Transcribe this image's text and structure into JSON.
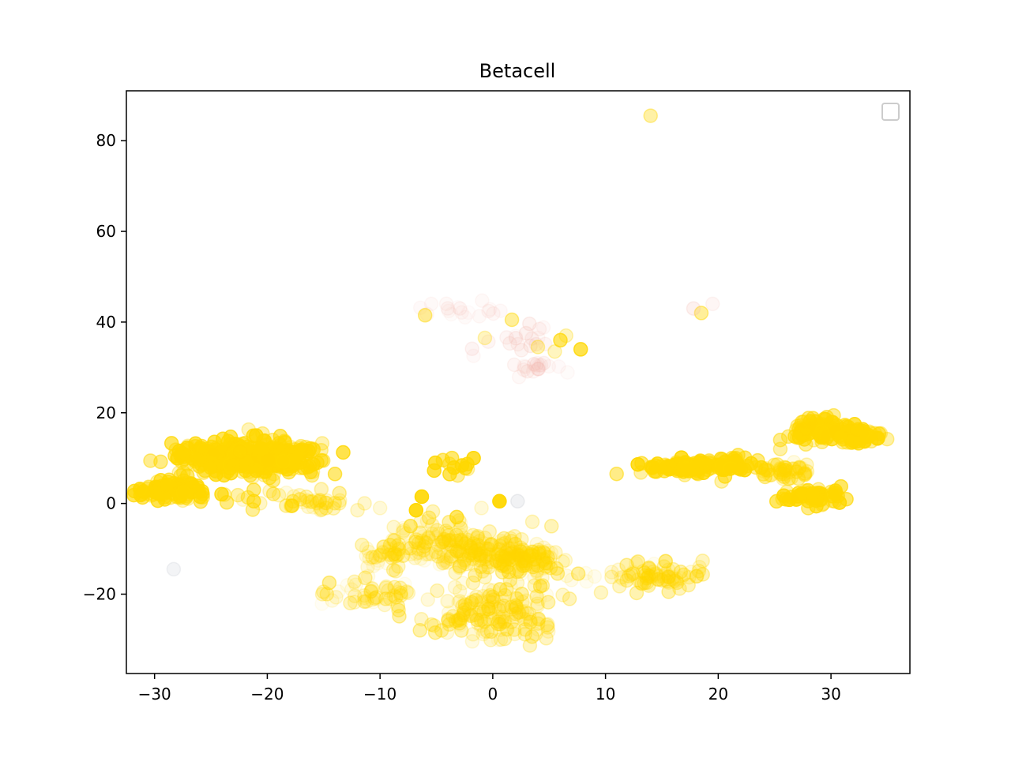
{
  "chart_data": {
    "type": "scatter",
    "title": "Betacell",
    "xlabel": "",
    "ylabel": "",
    "xlim": [
      -32.5,
      37
    ],
    "ylim": [
      -37.5,
      91
    ],
    "x_ticks": [
      -30,
      -20,
      -10,
      0,
      10,
      20,
      30
    ],
    "y_ticks": [
      -20,
      0,
      20,
      40,
      60,
      80
    ],
    "x_tick_labels": [
      "−30",
      "−20",
      "−10",
      "0",
      "10",
      "20",
      "30"
    ],
    "y_tick_labels": [
      "−20",
      "0",
      "20",
      "40",
      "60",
      "80"
    ],
    "grid": false,
    "legend": {
      "placement": "top-right",
      "entries": []
    },
    "marker_color": "#FFD700",
    "colors": {
      "gold": "#FFD700",
      "pink": "#F4B8B0",
      "grey": "#B0B8C0"
    },
    "clusters": [
      {
        "cx": -28.5,
        "cy": 3,
        "sx": 1.6,
        "sy": 1.3,
        "n": 90,
        "alpha": [
          0.25,
          0.75
        ],
        "color": "#FFD700"
      },
      {
        "cx": -24,
        "cy": 10.5,
        "sx": 2.2,
        "sy": 1.6,
        "n": 170,
        "alpha": [
          0.25,
          0.8
        ],
        "color": "#FFD700"
      },
      {
        "cx": -19.5,
        "cy": 10,
        "sx": 2.2,
        "sy": 1.8,
        "n": 200,
        "alpha": [
          0.25,
          0.8
        ],
        "color": "#FFD700"
      },
      {
        "cx": -15.5,
        "cy": 0.5,
        "sx": 1.3,
        "sy": 1.3,
        "n": 30,
        "alpha": [
          0.1,
          0.35
        ],
        "color": "#FFD700"
      },
      {
        "cx": -20.5,
        "cy": 1,
        "sx": 1.5,
        "sy": 1.5,
        "n": 14,
        "alpha": [
          0.1,
          0.5
        ],
        "color": "#FFD700"
      },
      {
        "cx": -3.5,
        "cy": -9,
        "sx": 2.8,
        "sy": 2.5,
        "n": 150,
        "alpha": [
          0.05,
          0.35
        ],
        "color": "#FFD700"
      },
      {
        "cx": 2,
        "cy": -12.5,
        "sx": 2.4,
        "sy": 2.2,
        "n": 130,
        "alpha": [
          0.05,
          0.4
        ],
        "color": "#FFD700"
      },
      {
        "cx": 0,
        "cy": -24,
        "sx": 3,
        "sy": 3,
        "n": 170,
        "alpha": [
          0.05,
          0.35
        ],
        "color": "#FFD700"
      },
      {
        "cx": -8.5,
        "cy": -11.5,
        "sx": 1.5,
        "sy": 2,
        "n": 40,
        "alpha": [
          0.05,
          0.35
        ],
        "color": "#FFD700"
      },
      {
        "cx": -10.5,
        "cy": -19.5,
        "sx": 2,
        "sy": 1.5,
        "n": 50,
        "alpha": [
          0.03,
          0.3
        ],
        "color": "#FFD700"
      },
      {
        "cx": 15,
        "cy": -16,
        "sx": 2,
        "sy": 1.4,
        "n": 70,
        "alpha": [
          0.05,
          0.35
        ],
        "color": "#FFD700"
      },
      {
        "cx": 9.5,
        "cy": -16.5,
        "sx": 2.4,
        "sy": 1.6,
        "n": 14,
        "alpha": [
          0.05,
          0.25
        ],
        "color": "#FFD700"
      },
      {
        "cx": 17.5,
        "cy": 8,
        "sx": 2.2,
        "sy": 0.8,
        "n": 100,
        "alpha": [
          0.35,
          0.85
        ],
        "color": "#FFD700"
      },
      {
        "cx": 21,
        "cy": 8.5,
        "sx": 0.8,
        "sy": 1.2,
        "n": 20,
        "alpha": [
          0.3,
          0.8
        ],
        "color": "#FFD700"
      },
      {
        "cx": 26,
        "cy": 7,
        "sx": 1.2,
        "sy": 1.0,
        "n": 40,
        "alpha": [
          0.1,
          0.45
        ],
        "color": "#FFD700"
      },
      {
        "cx": 28.5,
        "cy": 16.5,
        "sx": 1.2,
        "sy": 1.2,
        "n": 60,
        "alpha": [
          0.3,
          0.8
        ],
        "color": "#FFD700"
      },
      {
        "cx": 32,
        "cy": 15,
        "sx": 1.2,
        "sy": 1.2,
        "n": 60,
        "alpha": [
          0.3,
          0.8
        ],
        "color": "#FFD700"
      },
      {
        "cx": 28.5,
        "cy": 1.5,
        "sx": 1.3,
        "sy": 0.9,
        "n": 60,
        "alpha": [
          0.3,
          0.8
        ],
        "color": "#FFD700"
      },
      {
        "cx": -3.5,
        "cy": 8,
        "sx": 0.8,
        "sy": 1.5,
        "n": 12,
        "alpha": [
          0.3,
          0.8
        ],
        "color": "#FFD700"
      },
      {
        "cx": 3.5,
        "cy": 30,
        "sx": 1.3,
        "sy": 1.0,
        "n": 18,
        "alpha": [
          0.05,
          0.2
        ],
        "color": "#F4B8B0"
      },
      {
        "cx": -2,
        "cy": 42.5,
        "sx": 2.2,
        "sy": 0.9,
        "n": 18,
        "alpha": [
          0.04,
          0.12
        ],
        "color": "#F4B8B0"
      },
      {
        "cx": 2,
        "cy": 36,
        "sx": 2,
        "sy": 1.8,
        "n": 18,
        "alpha": [
          0.05,
          0.2
        ],
        "color": "#F4B8B0"
      }
    ],
    "points": [
      {
        "x": 14,
        "y": 85.5,
        "alpha": 0.35,
        "color": "#FFD700"
      },
      {
        "x": -6,
        "y": 41.5,
        "alpha": 0.4,
        "color": "#FFD700"
      },
      {
        "x": 1.7,
        "y": 40.5,
        "alpha": 0.4,
        "color": "#FFD700"
      },
      {
        "x": 6,
        "y": 36,
        "alpha": 0.6,
        "color": "#FFD700"
      },
      {
        "x": 7.8,
        "y": 34,
        "alpha": 0.7,
        "color": "#FFD700"
      },
      {
        "x": 6.5,
        "y": 37,
        "alpha": 0.25,
        "color": "#FFD700"
      },
      {
        "x": 4,
        "y": 34.5,
        "alpha": 0.3,
        "color": "#FFD700"
      },
      {
        "x": 5.5,
        "y": 33.5,
        "alpha": 0.25,
        "color": "#FFD700"
      },
      {
        "x": -0.7,
        "y": 36.5,
        "alpha": 0.25,
        "color": "#FFD700"
      },
      {
        "x": 18.5,
        "y": 42,
        "alpha": 0.4,
        "color": "#FFD700"
      },
      {
        "x": 17.8,
        "y": 43,
        "alpha": 0.2,
        "color": "#F4B8B0"
      },
      {
        "x": 19.5,
        "y": 44,
        "alpha": 0.12,
        "color": "#F4B8B0"
      },
      {
        "x": 0.6,
        "y": 0.5,
        "alpha": 0.95,
        "color": "#FFD700"
      },
      {
        "x": -6.3,
        "y": 1.5,
        "alpha": 0.9,
        "color": "#FFD700"
      },
      {
        "x": -6.8,
        "y": -1.5,
        "alpha": 0.9,
        "color": "#FFD700"
      },
      {
        "x": -7.3,
        "y": -5,
        "alpha": 0.5,
        "color": "#FFD700"
      },
      {
        "x": -1.7,
        "y": 10,
        "alpha": 0.8,
        "color": "#FFD700"
      },
      {
        "x": -3.2,
        "y": -3,
        "alpha": 0.6,
        "color": "#FFD700"
      },
      {
        "x": -1,
        "y": -1,
        "alpha": 0.15,
        "color": "#FFD700"
      },
      {
        "x": -14,
        "y": 6.5,
        "alpha": 0.55,
        "color": "#FFD700"
      },
      {
        "x": -15.2,
        "y": 9.5,
        "alpha": 0.55,
        "color": "#FFD700"
      },
      {
        "x": -17.8,
        "y": -0.5,
        "alpha": 0.6,
        "color": "#FFD700"
      },
      {
        "x": -21.2,
        "y": 0.5,
        "alpha": 0.6,
        "color": "#FFD700"
      },
      {
        "x": -21.2,
        "y": 3,
        "alpha": 0.5,
        "color": "#FFD700"
      },
      {
        "x": -28.2,
        "y": 10.5,
        "alpha": 0.6,
        "color": "#FFD700"
      },
      {
        "x": -14.5,
        "y": -17.5,
        "alpha": 0.4,
        "color": "#FFD700"
      },
      {
        "x": 2.2,
        "y": 0.5,
        "alpha": 0.18,
        "color": "#B0B8C0"
      },
      {
        "x": -28.3,
        "y": -14.5,
        "alpha": 0.15,
        "color": "#B0B8C0"
      },
      {
        "x": 14.5,
        "y": 7,
        "alpha": 0.6,
        "color": "#FFD700"
      },
      {
        "x": 22,
        "y": 7.5,
        "alpha": 0.6,
        "color": "#FFD700"
      },
      {
        "x": 23.5,
        "y": 9.5,
        "alpha": 0.5,
        "color": "#FFD700"
      },
      {
        "x": 25.5,
        "y": 14,
        "alpha": 0.45,
        "color": "#FFD700"
      },
      {
        "x": 25.5,
        "y": 12,
        "alpha": 0.35,
        "color": "#FFD700"
      },
      {
        "x": 27,
        "y": 14.5,
        "alpha": 0.35,
        "color": "#FFD700"
      },
      {
        "x": 25.7,
        "y": 1,
        "alpha": 0.4,
        "color": "#FFD700"
      },
      {
        "x": 27.2,
        "y": 8,
        "alpha": 0.35,
        "color": "#FFD700"
      },
      {
        "x": 18.2,
        "y": 6.5,
        "alpha": 0.4,
        "color": "#FFD700"
      },
      {
        "x": -12,
        "y": -1.5,
        "alpha": 0.2,
        "color": "#FFD700"
      },
      {
        "x": -10,
        "y": -1,
        "alpha": 0.15,
        "color": "#FFD700"
      }
    ]
  }
}
